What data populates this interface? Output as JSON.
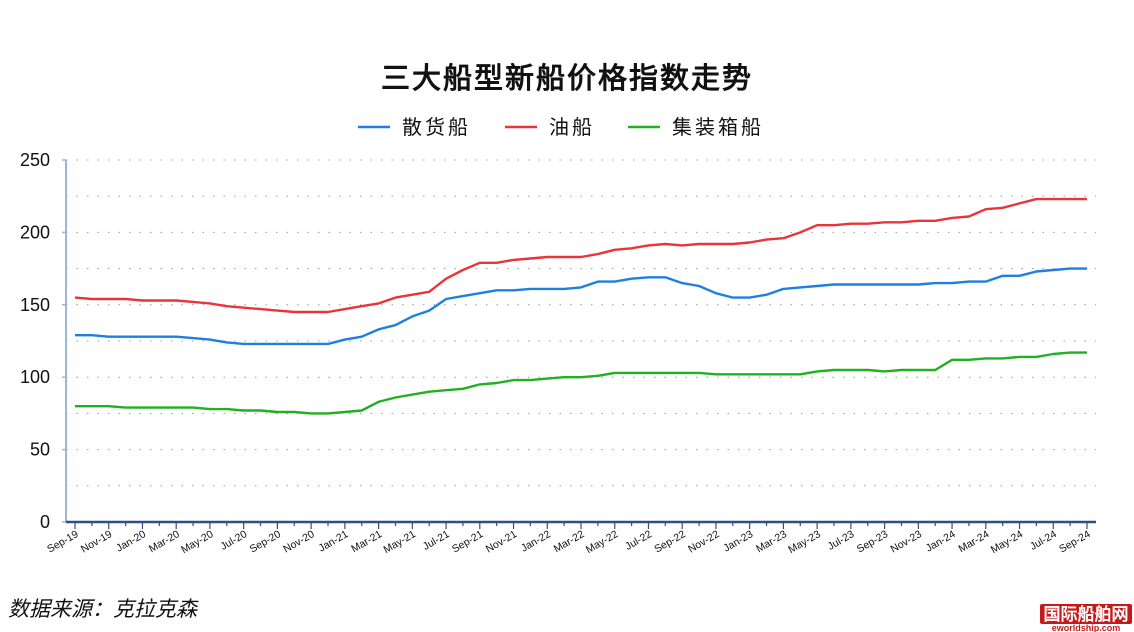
{
  "chart_data": {
    "type": "line",
    "title": "三大船型新船价格指数走势",
    "xlabel": "",
    "ylabel": "",
    "ylim": [
      0,
      250
    ],
    "yticks": [
      0,
      50,
      100,
      150,
      200,
      250
    ],
    "grid": true,
    "legend_position": "top-center",
    "x": [
      "Sep-19",
      "Oct-19",
      "Nov-19",
      "Dec-19",
      "Jan-20",
      "Feb-20",
      "Mar-20",
      "Apr-20",
      "May-20",
      "Jun-20",
      "Jul-20",
      "Aug-20",
      "Sep-20",
      "Oct-20",
      "Nov-20",
      "Dec-20",
      "Jan-21",
      "Feb-21",
      "Mar-21",
      "Apr-21",
      "May-21",
      "Jun-21",
      "Jul-21",
      "Aug-21",
      "Sep-21",
      "Oct-21",
      "Nov-21",
      "Dec-21",
      "Jan-22",
      "Feb-22",
      "Mar-22",
      "Apr-22",
      "May-22",
      "Jun-22",
      "Jul-22",
      "Aug-22",
      "Sep-22",
      "Oct-22",
      "Nov-22",
      "Dec-22",
      "Jan-23",
      "Feb-23",
      "Mar-23",
      "Apr-23",
      "May-23",
      "Jun-23",
      "Jul-23",
      "Aug-23",
      "Sep-23",
      "Oct-23",
      "Nov-23",
      "Dec-23",
      "Jan-24",
      "Feb-24",
      "Mar-24",
      "Apr-24",
      "May-24",
      "Jun-24",
      "Jul-24",
      "Aug-24",
      "Sep-24"
    ],
    "xtick_labels": [
      "Sep-19",
      "Nov-19",
      "Jan-20",
      "Mar-20",
      "May-20",
      "Jul-20",
      "Sep-20",
      "Nov-20",
      "Jan-21",
      "Mar-21",
      "May-21",
      "Jul-21",
      "Sep-21",
      "Nov-21",
      "Jan-22",
      "Mar-22",
      "May-22",
      "Jul-22",
      "Sep-22",
      "Nov-22",
      "Jan-23",
      "Mar-23",
      "May-23",
      "Jul-23",
      "Sep-23",
      "Nov-23",
      "Jan-24",
      "Mar-24",
      "May-24",
      "Jul-24",
      "Sep-24"
    ],
    "series": [
      {
        "name": "散货船",
        "color": "#1f7fe0",
        "values": [
          129,
          129,
          128,
          128,
          128,
          128,
          128,
          127,
          126,
          124,
          123,
          123,
          123,
          123,
          123,
          123,
          126,
          128,
          133,
          136,
          142,
          146,
          154,
          156,
          158,
          160,
          160,
          161,
          161,
          161,
          162,
          166,
          166,
          168,
          169,
          169,
          165,
          163,
          158,
          155,
          155,
          157,
          161,
          162,
          163,
          164,
          164,
          164,
          164,
          164,
          164,
          165,
          165,
          166,
          166,
          170,
          170,
          173,
          174,
          175,
          175
        ]
      },
      {
        "name": "油船",
        "color": "#e8353a",
        "values": [
          155,
          154,
          154,
          154,
          153,
          153,
          153,
          152,
          151,
          149,
          148,
          147,
          146,
          145,
          145,
          145,
          147,
          149,
          151,
          155,
          157,
          159,
          168,
          174,
          179,
          179,
          181,
          182,
          183,
          183,
          183,
          185,
          188,
          189,
          191,
          192,
          191,
          192,
          192,
          192,
          193,
          195,
          196,
          200,
          205,
          205,
          206,
          206,
          207,
          207,
          208,
          208,
          210,
          211,
          216,
          217,
          220,
          223,
          223,
          223,
          223
        ]
      },
      {
        "name": "集装箱船",
        "color": "#22b022",
        "values": [
          80,
          80,
          80,
          79,
          79,
          79,
          79,
          79,
          78,
          78,
          77,
          77,
          76,
          76,
          75,
          75,
          76,
          77,
          83,
          86,
          88,
          90,
          91,
          92,
          95,
          96,
          98,
          98,
          99,
          100,
          100,
          101,
          103,
          103,
          103,
          103,
          103,
          103,
          102,
          102,
          102,
          102,
          102,
          102,
          104,
          105,
          105,
          105,
          104,
          105,
          105,
          105,
          112,
          112,
          113,
          113,
          114,
          114,
          116,
          117,
          117
        ]
      }
    ]
  },
  "footer": {
    "source": "数据来源：克拉克森",
    "watermark_main": "国际船舶网",
    "watermark_sub": "eworldship.com"
  }
}
